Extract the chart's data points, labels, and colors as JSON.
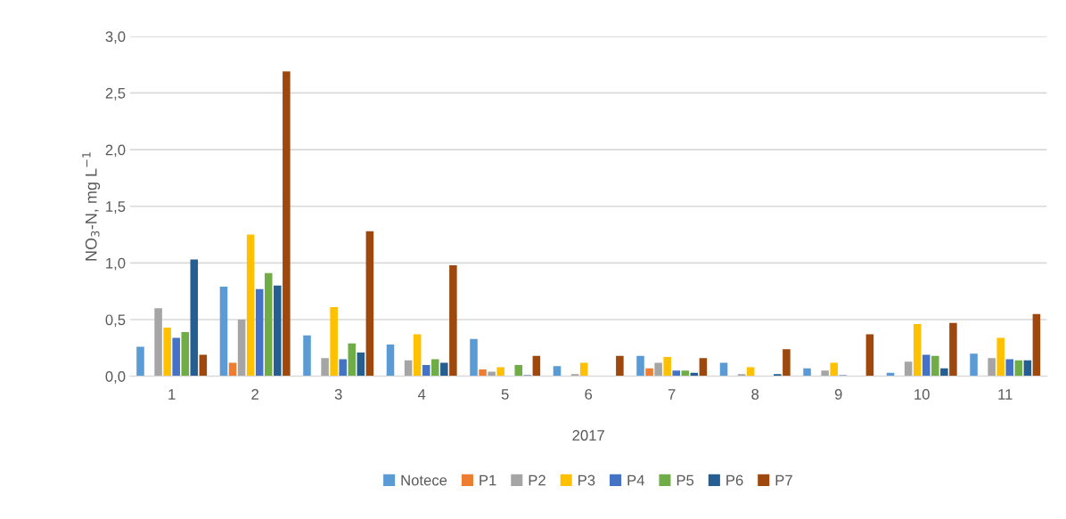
{
  "chart_data": {
    "type": "bar",
    "xlabel": "2017",
    "ylabel": "NO$_{3}$-N, mg L$^{−1}$",
    "categories": [
      "1",
      "2",
      "3",
      "4",
      "5",
      "6",
      "7",
      "8",
      "9",
      "10",
      "11"
    ],
    "series": [
      {
        "name": "Notece",
        "color": "#5b9bd5",
        "values": [
          0.26,
          0.79,
          0.36,
          0.28,
          0.33,
          0.09,
          0.18,
          0.12,
          0.07,
          0.03,
          0.2
        ]
      },
      {
        "name": "P1",
        "color": "#ed7d31",
        "values": [
          0,
          0.12,
          0,
          0,
          0.06,
          0,
          0.07,
          0,
          0,
          0,
          0
        ]
      },
      {
        "name": "P2",
        "color": "#a5a5a5",
        "values": [
          0.6,
          0.5,
          0.16,
          0.14,
          0.04,
          0.02,
          0.12,
          0.02,
          0.05,
          0.13,
          0.16
        ]
      },
      {
        "name": "P3",
        "color": "#ffc000",
        "values": [
          0.43,
          1.25,
          0.61,
          0.37,
          0.08,
          0.12,
          0.17,
          0.08,
          0.12,
          0.46,
          0.34
        ]
      },
      {
        "name": "P4",
        "color": "#4472c4",
        "values": [
          0.34,
          0.77,
          0.15,
          0.1,
          0,
          0,
          0.05,
          0,
          0.01,
          0.19,
          0.15
        ]
      },
      {
        "name": "P5",
        "color": "#70ad47",
        "values": [
          0.39,
          0.91,
          0.29,
          0.15,
          0.1,
          0,
          0.05,
          0,
          0,
          0.18,
          0.14
        ]
      },
      {
        "name": "P6",
        "color": "#255e91",
        "values": [
          1.03,
          0.8,
          0.21,
          0.12,
          0.01,
          0,
          0.03,
          0.02,
          0,
          0.07,
          0.14
        ]
      },
      {
        "name": "P7",
        "color": "#9e480e",
        "values": [
          0.19,
          2.69,
          1.28,
          0.98,
          0.18,
          0.18,
          0.16,
          0.24,
          0.37,
          0.47,
          0.55
        ]
      }
    ],
    "ylim": [
      0,
      3.0
    ],
    "yticks": [
      {
        "value": 0,
        "label": "0,0"
      },
      {
        "value": 0.5,
        "label": "0,5"
      },
      {
        "value": 1.0,
        "label": "1,0"
      },
      {
        "value": 1.5,
        "label": "1,5"
      },
      {
        "value": 2.0,
        "label": "2,0"
      },
      {
        "value": 2.5,
        "label": "2,5"
      },
      {
        "value": 3.0,
        "label": "3,0"
      }
    ],
    "grid": "y",
    "legend": "bottom"
  }
}
